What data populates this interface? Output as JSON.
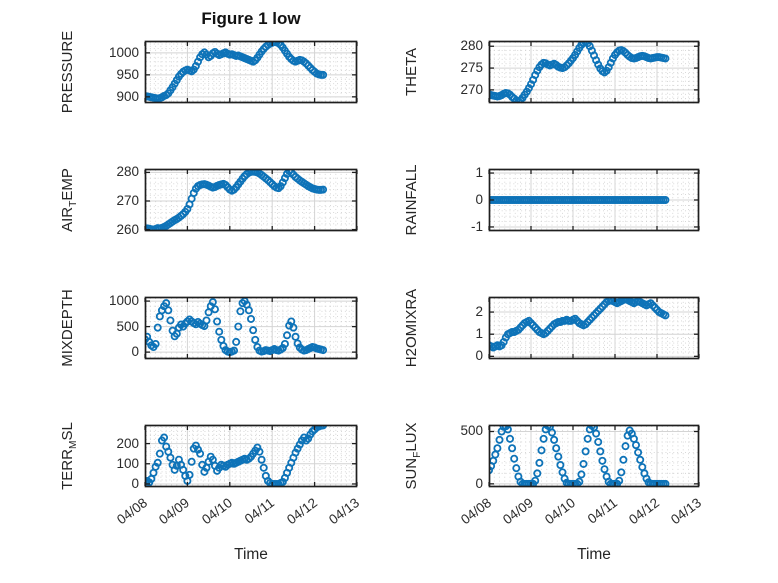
{
  "figure": {
    "title": "Figure 1 low",
    "background": "#ffffff"
  },
  "style": {
    "marker_color": "#0e73b8",
    "frame_color": "#1f1f1f",
    "major_grid_color": "#d4d4d4",
    "minor_grid_color": "#cfcfcf",
    "text_color": "#262626",
    "plot_background": "#ffffff"
  },
  "time_axis": {
    "label": "Time",
    "tick_labels": [
      "04/08",
      "04/09",
      "04/10",
      "04/11",
      "04/12",
      "04/13"
    ],
    "tick_values": [
      0,
      1,
      2,
      3,
      4,
      5
    ],
    "xlim": [
      0,
      5
    ]
  },
  "chart_data": [
    {
      "id": "pressure",
      "type": "scatter",
      "title": "Figure 1 low",
      "ylabel_parts": [
        {
          "t": "PRESSURE"
        }
      ],
      "yticks": [
        900,
        950,
        1000
      ],
      "ylim": [
        886,
        1027
      ],
      "yminor": 10,
      "t0": 0,
      "dt": 0.05,
      "v": [
        900,
        901,
        900,
        899,
        898,
        897,
        896,
        897,
        899,
        902,
        904,
        908,
        915,
        922,
        930,
        938,
        946,
        952,
        957,
        960,
        962,
        960,
        958,
        962,
        970,
        980,
        990,
        997,
        1001,
        996,
        990,
        993,
        999,
        1002,
        998,
        995,
        997,
        999,
        1001,
        998,
        996,
        997,
        995,
        993,
        994,
        992,
        990,
        988,
        986,
        984,
        982,
        980,
        983,
        989,
        996,
        1003,
        1009,
        1014,
        1018,
        1021,
        1023,
        1025,
        1024,
        1022,
        1018,
        1012,
        1005,
        998,
        991,
        986,
        982,
        980,
        982,
        984,
        983,
        980,
        976,
        971,
        966,
        961,
        957,
        953,
        951,
        950,
        950
      ]
    },
    {
      "id": "theta",
      "type": "scatter",
      "ylabel_parts": [
        {
          "t": "THETA"
        }
      ],
      "yticks": [
        270,
        275,
        280
      ],
      "ylim": [
        267,
        281.2
      ],
      "yminor": 1,
      "t0": 0,
      "dt": 0.05,
      "v": [
        269.0,
        268.8,
        268.7,
        268.6,
        268.5,
        268.6,
        268.8,
        269.1,
        269.3,
        269.2,
        268.9,
        268.4,
        268.0,
        267.6,
        267.4,
        267.6,
        268.2,
        268.9,
        269.6,
        270.4,
        271.3,
        272.3,
        273.4,
        274.4,
        275.2,
        275.8,
        276.2,
        276.1,
        275.8,
        275.6,
        275.8,
        276.0,
        275.7,
        275.3,
        275.1,
        275.0,
        275.2,
        275.6,
        276.1,
        276.7,
        277.3,
        278.0,
        278.8,
        279.6,
        280.3,
        280.8,
        281.0,
        280.7,
        280.0,
        279.0,
        277.9,
        276.8,
        275.8,
        274.9,
        274.3,
        274.0,
        274.4,
        275.2,
        276.2,
        277.2,
        278.0,
        278.6,
        279.0,
        279.1,
        278.9,
        278.5,
        278.0,
        277.6,
        277.3,
        277.2,
        277.3,
        277.5,
        277.7,
        277.8,
        277.7,
        277.5,
        277.3,
        277.2,
        277.3,
        277.4,
        277.5,
        277.5,
        277.4,
        277.3,
        277.2
      ]
    },
    {
      "id": "air_temp",
      "type": "scatter",
      "ylabel_parts": [
        {
          "t": "AIR"
        },
        {
          "t": "T",
          "sub": true
        },
        {
          "t": "EMP"
        }
      ],
      "yticks": [
        260,
        270,
        280
      ],
      "ylim": [
        259.5,
        281.2
      ],
      "yminor": 2,
      "t0": 0,
      "dt": 0.05,
      "v": [
        260.2,
        260.4,
        260.3,
        260.1,
        260.0,
        260.2,
        260.5,
        260.4,
        260.6,
        260.9,
        261.3,
        261.8,
        262.3,
        262.8,
        263.3,
        263.7,
        264.2,
        264.8,
        265.4,
        266.2,
        267.2,
        268.8,
        270.8,
        272.8,
        274.3,
        275.2,
        275.6,
        275.8,
        275.9,
        275.7,
        275.4,
        275.0,
        274.7,
        274.9,
        275.3,
        275.6,
        275.8,
        276.0,
        275.6,
        274.8,
        274.0,
        273.6,
        274.0,
        274.8,
        275.8,
        276.8,
        277.8,
        278.7,
        279.4,
        279.9,
        280.2,
        280.3,
        280.2,
        280.0,
        279.6,
        279.1,
        278.5,
        277.9,
        277.3,
        276.6,
        275.9,
        275.2,
        274.7,
        274.5,
        275.2,
        276.5,
        278.0,
        279.5,
        280.5,
        280.0,
        279.2,
        278.4,
        277.8,
        277.2,
        276.7,
        276.2,
        275.7,
        275.2,
        274.8,
        274.4,
        274.2,
        274.0,
        273.9,
        273.9,
        274.0
      ]
    },
    {
      "id": "rainfall",
      "type": "scatter",
      "ylabel_parts": [
        {
          "t": "RAINFALL"
        }
      ],
      "yticks": [
        -1,
        0,
        1
      ],
      "ylim": [
        -1.15,
        1.15
      ],
      "yminor": 0.2,
      "t0": 0,
      "dt": 0.05,
      "v": [
        0,
        0,
        0,
        0,
        0,
        0,
        0,
        0,
        0,
        0,
        0,
        0,
        0,
        0,
        0,
        0,
        0,
        0,
        0,
        0,
        0,
        0,
        0,
        0,
        0,
        0,
        0,
        0,
        0,
        0,
        0,
        0,
        0,
        0,
        0,
        0,
        0,
        0,
        0,
        0,
        0,
        0,
        0,
        0,
        0,
        0,
        0,
        0,
        0,
        0,
        0,
        0,
        0,
        0,
        0,
        0,
        0,
        0,
        0,
        0,
        0,
        0,
        0,
        0,
        0,
        0,
        0,
        0,
        0,
        0,
        0,
        0,
        0,
        0,
        0,
        0,
        0,
        0,
        0,
        0,
        0,
        0,
        0,
        0,
        0
      ]
    },
    {
      "id": "mixdepth",
      "type": "scatter",
      "ylabel_parts": [
        {
          "t": "MIXDEPTH"
        }
      ],
      "yticks": [
        0,
        500,
        1000
      ],
      "ylim": [
        -135,
        1080
      ],
      "yminor": 100,
      "t0": 0,
      "dt": 0.05,
      "v": [
        250,
        300,
        200,
        130,
        100,
        160,
        480,
        700,
        820,
        900,
        960,
        820,
        620,
        420,
        310,
        360,
        480,
        540,
        500,
        560,
        600,
        640,
        600,
        570,
        545,
        590,
        555,
        530,
        510,
        620,
        780,
        900,
        980,
        840,
        600,
        400,
        240,
        120,
        40,
        10,
        0,
        10,
        30,
        200,
        500,
        800,
        960,
        1000,
        930,
        820,
        650,
        430,
        240,
        100,
        30,
        10,
        20,
        40,
        30,
        20,
        40,
        60,
        40,
        30,
        50,
        80,
        160,
        330,
        520,
        600,
        480,
        300,
        170,
        90,
        50,
        30,
        40,
        60,
        80,
        100,
        90,
        70,
        60,
        50,
        40
      ]
    },
    {
      "id": "h2omixra",
      "type": "scatter",
      "ylabel_parts": [
        {
          "t": "H2OMIXRA"
        }
      ],
      "yticks": [
        0,
        1,
        2
      ],
      "ylim": [
        -0.12,
        2.68
      ],
      "yminor": 0.2,
      "t0": 0,
      "dt": 0.05,
      "v": [
        0.5,
        0.45,
        0.4,
        0.45,
        0.5,
        0.45,
        0.5,
        0.65,
        0.85,
        1.0,
        1.05,
        1.1,
        1.1,
        1.15,
        1.2,
        1.3,
        1.4,
        1.5,
        1.55,
        1.6,
        1.5,
        1.4,
        1.3,
        1.2,
        1.1,
        1.05,
        1.0,
        1.05,
        1.15,
        1.25,
        1.35,
        1.45,
        1.5,
        1.55,
        1.55,
        1.6,
        1.6,
        1.65,
        1.6,
        1.6,
        1.65,
        1.7,
        1.6,
        1.5,
        1.45,
        1.4,
        1.45,
        1.55,
        1.65,
        1.75,
        1.85,
        1.95,
        2.05,
        2.15,
        2.25,
        2.35,
        2.45,
        2.5,
        2.55,
        2.5,
        2.45,
        2.4,
        2.45,
        2.5,
        2.55,
        2.6,
        2.55,
        2.5,
        2.45,
        2.4,
        2.45,
        2.5,
        2.45,
        2.4,
        2.35,
        2.3,
        2.35,
        2.4,
        2.3,
        2.2,
        2.1,
        2.0,
        1.95,
        1.9,
        1.85
      ]
    },
    {
      "id": "terr_msl",
      "type": "scatter",
      "ylabel_parts": [
        {
          "t": "TERR"
        },
        {
          "t": "M",
          "sub": true
        },
        {
          "t": "SL"
        }
      ],
      "yticks": [
        0,
        100,
        200
      ],
      "ylim": [
        -15,
        292
      ],
      "yminor": 20,
      "t0": 0,
      "dt": 0.05,
      "v": [
        10,
        15,
        8,
        25,
        55,
        85,
        105,
        150,
        215,
        230,
        185,
        160,
        130,
        95,
        70,
        90,
        120,
        95,
        70,
        40,
        15,
        45,
        110,
        175,
        190,
        170,
        150,
        95,
        60,
        80,
        110,
        135,
        120,
        90,
        65,
        80,
        95,
        90,
        85,
        95,
        100,
        105,
        100,
        105,
        110,
        115,
        120,
        125,
        120,
        125,
        135,
        150,
        165,
        180,
        160,
        120,
        80,
        40,
        15,
        5,
        0,
        0,
        0,
        0,
        5,
        10,
        30,
        55,
        80,
        105,
        130,
        155,
        175,
        195,
        215,
        230,
        215,
        225,
        245,
        260,
        270,
        280,
        285,
        288,
        290
      ]
    },
    {
      "id": "sun_flux",
      "type": "scatter",
      "ylabel_parts": [
        {
          "t": "SUN"
        },
        {
          "t": "F",
          "sub": true
        },
        {
          "t": "LUX"
        }
      ],
      "yticks": [
        0,
        500
      ],
      "ylim": [
        -30,
        562
      ],
      "yminor": 100,
      "t0": 0,
      "dt": 0.05,
      "v": [
        130,
        170,
        220,
        280,
        340,
        420,
        500,
        545,
        550,
        520,
        430,
        340,
        240,
        150,
        70,
        20,
        0,
        0,
        0,
        0,
        0,
        0,
        30,
        100,
        200,
        320,
        430,
        520,
        555,
        545,
        490,
        420,
        340,
        260,
        180,
        110,
        50,
        10,
        0,
        0,
        0,
        0,
        0,
        20,
        90,
        190,
        310,
        430,
        520,
        555,
        540,
        480,
        400,
        310,
        220,
        140,
        70,
        20,
        0,
        0,
        0,
        0,
        30,
        110,
        230,
        360,
        460,
        510,
        480,
        430,
        370,
        300,
        230,
        160,
        100,
        50,
        15,
        0,
        0,
        0,
        0,
        0,
        0,
        0,
        0
      ]
    }
  ]
}
